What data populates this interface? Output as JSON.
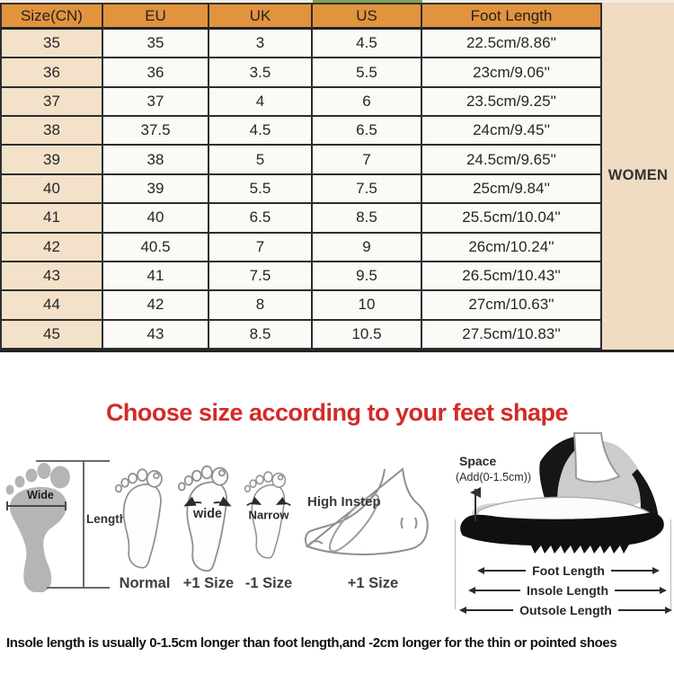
{
  "table": {
    "headers": [
      "Size(CN)",
      "EU",
      "UK",
      "US",
      "Foot Length"
    ],
    "side_label": "WOMEN",
    "rows": [
      [
        "35",
        "35",
        "3",
        "4.5",
        "22.5cm/8.86''"
      ],
      [
        "36",
        "36",
        "3.5",
        "5.5",
        "23cm/9.06''"
      ],
      [
        "37",
        "37",
        "4",
        "6",
        "23.5cm/9.25''"
      ],
      [
        "38",
        "37.5",
        "4.5",
        "6.5",
        "24cm/9.45''"
      ],
      [
        "39",
        "38",
        "5",
        "7",
        "24.5cm/9.65''"
      ],
      [
        "40",
        "39",
        "5.5",
        "7.5",
        "25cm/9.84''"
      ],
      [
        "41",
        "40",
        "6.5",
        "8.5",
        "25.5cm/10.04''"
      ],
      [
        "42",
        "40.5",
        "7",
        "9",
        "26cm/10.24''"
      ],
      [
        "43",
        "41",
        "7.5",
        "9.5",
        "26.5cm/10.43''"
      ],
      [
        "44",
        "42",
        "8",
        "10",
        "27cm/10.63''"
      ],
      [
        "45",
        "43",
        "8.5",
        "10.5",
        "27.5cm/10.83''"
      ]
    ]
  },
  "guide": {
    "heading": "Choose size according to your feet shape",
    "footprint": {
      "wide": "Wide",
      "length": "Length"
    },
    "feet": [
      {
        "caption": "Normal"
      },
      {
        "overlay": "wide",
        "caption": "+1 Size"
      },
      {
        "overlay": "Narrow",
        "caption": "-1 Size"
      },
      {
        "overlay": "High Instep",
        "caption": "+1 Size"
      }
    ],
    "shoe": {
      "space": "Space",
      "space_note": "(Add(0-1.5cm))",
      "measures": [
        "Foot Length",
        "Insole Length",
        "Outsole Length"
      ]
    }
  },
  "footnote": "Insole length is usually 0-1.5cm longer than foot length,and -2cm longer for the thin or pointed shoes",
  "colors": {
    "header_orange": "#e2933d",
    "column_beige": "#f3e2c9",
    "sidebar_beige": "#f0dcc2",
    "heading_red": "#d32a28",
    "border_dark": "#2d2d2d",
    "footprint_gray": "#b5b5b5",
    "sliver_green": "#85a050"
  }
}
